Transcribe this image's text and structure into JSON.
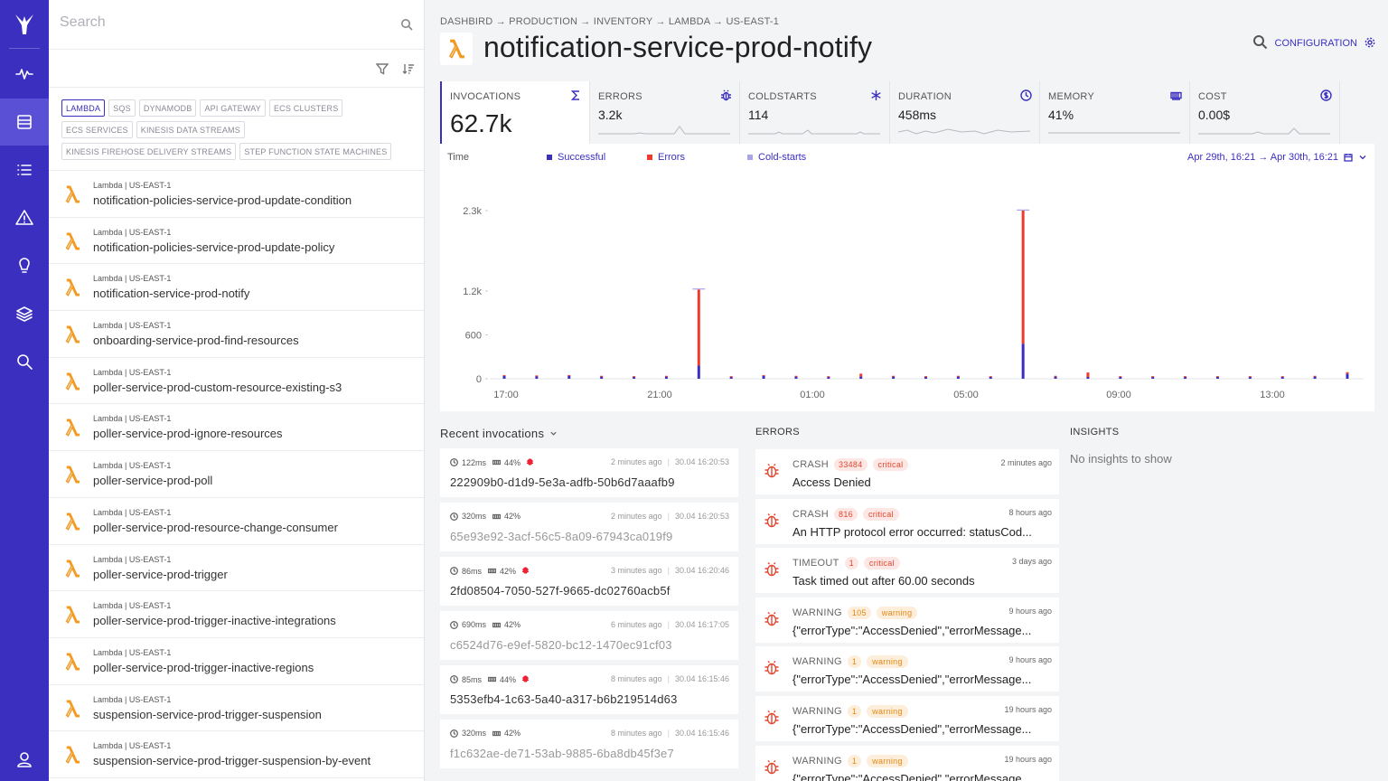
{
  "sidebar": {
    "search_placeholder": "Search",
    "tags": [
      "LAMBDA",
      "SQS",
      "DYNAMODB",
      "API GATEWAY",
      "ECS CLUSTERS",
      "ECS SERVICES",
      "KINESIS DATA STREAMS",
      "KINESIS FIREHOSE DELIVERY STREAMS",
      "STEP FUNCTION STATE MACHINES"
    ],
    "items": [
      {
        "sub": "Lambda | US-EAST-1",
        "name": "notification-policies-service-prod-update-condition"
      },
      {
        "sub": "Lambda | US-EAST-1",
        "name": "notification-policies-service-prod-update-policy"
      },
      {
        "sub": "Lambda | US-EAST-1",
        "name": "notification-service-prod-notify"
      },
      {
        "sub": "Lambda | US-EAST-1",
        "name": "onboarding-service-prod-find-resources"
      },
      {
        "sub": "Lambda | US-EAST-1",
        "name": "poller-service-prod-custom-resource-existing-s3"
      },
      {
        "sub": "Lambda | US-EAST-1",
        "name": "poller-service-prod-ignore-resources"
      },
      {
        "sub": "Lambda | US-EAST-1",
        "name": "poller-service-prod-poll"
      },
      {
        "sub": "Lambda | US-EAST-1",
        "name": "poller-service-prod-resource-change-consumer"
      },
      {
        "sub": "Lambda | US-EAST-1",
        "name": "poller-service-prod-trigger"
      },
      {
        "sub": "Lambda | US-EAST-1",
        "name": "poller-service-prod-trigger-inactive-integrations"
      },
      {
        "sub": "Lambda | US-EAST-1",
        "name": "poller-service-prod-trigger-inactive-regions"
      },
      {
        "sub": "Lambda | US-EAST-1",
        "name": "suspension-service-prod-trigger-suspension"
      },
      {
        "sub": "Lambda | US-EAST-1",
        "name": "suspension-service-prod-trigger-suspension-by-event"
      }
    ]
  },
  "header": {
    "breadcrumb": "DASHBIRD → PRODUCTION → INVENTORY → LAMBDA → US-EAST-1",
    "title": "notification-service-prod-notify",
    "configuration_label": "CONFIGURATION"
  },
  "metrics": [
    {
      "label": "INVOCATIONS",
      "value": "62.7k",
      "icon": "sigma-icon"
    },
    {
      "label": "ERRORS",
      "value": "3.2k",
      "icon": "bug-icon"
    },
    {
      "label": "COLDSTARTS",
      "value": "114",
      "icon": "snowflake-icon"
    },
    {
      "label": "DURATION",
      "value": "458ms",
      "icon": "clock-icon"
    },
    {
      "label": "MEMORY",
      "value": "41%",
      "icon": "memory-icon"
    },
    {
      "label": "COST",
      "value": "0.00$",
      "icon": "dollar-icon"
    }
  ],
  "chart": {
    "x_label": "Time",
    "date_range": "Apr 29th, 16:21 → Apr 30th, 16:21",
    "colors": {
      "successful": "#3b2fc0",
      "errors": "#f03a2e",
      "coldstarts": "#a9a4e8"
    }
  },
  "chart_data": {
    "type": "bar",
    "stacked": true,
    "x_ticks": [
      "17:00",
      "21:00",
      "01:00",
      "05:00",
      "09:00",
      "13:00"
    ],
    "y_ticks": [
      "0",
      "600",
      "1.2k",
      "2.3k"
    ],
    "series": [
      {
        "name": "Successful",
        "values": [
          40,
          35,
          40,
          30,
          25,
          30,
          180,
          25,
          40,
          30,
          25,
          30,
          30,
          25,
          30,
          25,
          480,
          30,
          25,
          25,
          25,
          25,
          25,
          25,
          25,
          30,
          70
        ]
      },
      {
        "name": "Errors",
        "values": [
          10,
          10,
          10,
          10,
          10,
          10,
          1040,
          10,
          10,
          10,
          10,
          40,
          10,
          10,
          10,
          10,
          1820,
          10,
          60,
          10,
          10,
          10,
          10,
          10,
          10,
          10,
          20
        ]
      },
      {
        "name": "Cold-starts",
        "values": [
          0,
          0,
          0,
          0,
          0,
          0,
          15,
          0,
          0,
          0,
          0,
          0,
          0,
          0,
          0,
          0,
          15,
          0,
          0,
          0,
          0,
          0,
          0,
          0,
          0,
          0,
          0
        ]
      }
    ],
    "ylim": [
      0,
      2300
    ]
  },
  "invocations": {
    "title": "Recent invocations",
    "items": [
      {
        "duration": "122ms",
        "memory": "44%",
        "bug": true,
        "ago": "2 minutes ago",
        "ts": "30.04 16:20:53",
        "id": "222909b0-d1d9-5e3a-adfb-50b6d7aaafb9"
      },
      {
        "duration": "320ms",
        "memory": "42%",
        "bug": false,
        "ago": "2 minutes ago",
        "ts": "30.04 16:20:53",
        "id": "65e93e92-3acf-56c5-8a09-67943ca019f9"
      },
      {
        "duration": "86ms",
        "memory": "42%",
        "bug": true,
        "ago": "3 minutes ago",
        "ts": "30.04 16:20:46",
        "id": "2fd08504-7050-527f-9665-dc02760acb5f"
      },
      {
        "duration": "690ms",
        "memory": "42%",
        "bug": false,
        "ago": "6 minutes ago",
        "ts": "30.04 16:17:05",
        "id": "c6524d76-e9ef-5820-bc12-1470ec91cf03"
      },
      {
        "duration": "85ms",
        "memory": "44%",
        "bug": true,
        "ago": "8 minutes ago",
        "ts": "30.04 16:15:46",
        "id": "5353efb4-1c63-5a40-a317-b6b219514d63"
      },
      {
        "duration": "320ms",
        "memory": "42%",
        "bug": false,
        "ago": "8 minutes ago",
        "ts": "30.04 16:15:46",
        "id": "f1c632ae-de71-53ab-9885-6ba8db45f3e7"
      }
    ]
  },
  "errors": {
    "title": "ERRORS",
    "items": [
      {
        "type": "CRASH",
        "count": "33484",
        "severity": "critical",
        "ago": "2 minutes ago",
        "message": "Access Denied"
      },
      {
        "type": "CRASH",
        "count": "816",
        "severity": "critical",
        "ago": "8 hours ago",
        "message": "An HTTP protocol error occurred: statusCod..."
      },
      {
        "type": "TIMEOUT",
        "count": "1",
        "severity": "critical",
        "ago": "3 days ago",
        "message": "Task timed out after 60.00 seconds"
      },
      {
        "type": "WARNING",
        "count": "105",
        "severity": "warning",
        "ago": "9 hours ago",
        "message": "{\"errorType\":\"AccessDenied\",\"errorMessage..."
      },
      {
        "type": "WARNING",
        "count": "1",
        "severity": "warning",
        "ago": "9 hours ago",
        "message": "{\"errorType\":\"AccessDenied\",\"errorMessage..."
      },
      {
        "type": "WARNING",
        "count": "1",
        "severity": "warning",
        "ago": "19 hours ago",
        "message": "{\"errorType\":\"AccessDenied\",\"errorMessage..."
      },
      {
        "type": "WARNING",
        "count": "1",
        "severity": "warning",
        "ago": "19 hours ago",
        "message": "{\"errorType\":\"AccessDenied\",\"errorMessage..."
      }
    ]
  },
  "insights": {
    "title": "INSIGHTS",
    "empty_text": "No insights to show"
  }
}
